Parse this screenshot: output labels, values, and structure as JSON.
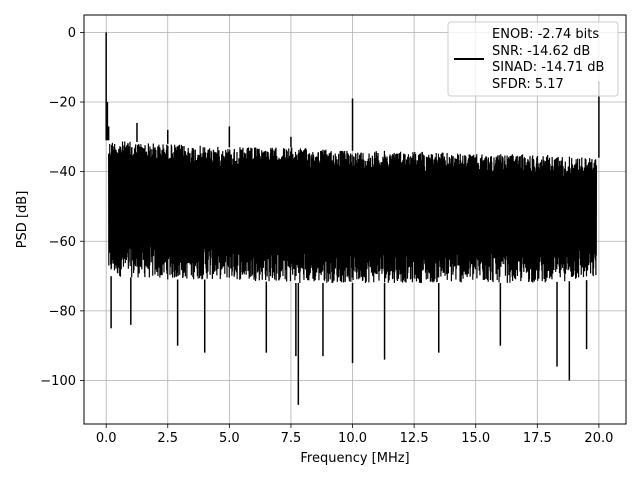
{
  "chart_data": {
    "type": "line",
    "xlabel": "Frequency [MHz]",
    "ylabel": "PSD [dB]",
    "xlim": [
      -0.9,
      21.1
    ],
    "ylim": [
      -112.5,
      5
    ],
    "xticks": [
      0.0,
      2.5,
      5.0,
      7.5,
      10.0,
      12.5,
      15.0,
      17.5,
      20.0
    ],
    "xtick_labels": [
      "0.0",
      "2.5",
      "5.0",
      "7.5",
      "10.0",
      "12.5",
      "15.0",
      "17.5",
      "20.0"
    ],
    "yticks": [
      0,
      -20,
      -40,
      -60,
      -80,
      -100
    ],
    "ytick_labels": [
      "0",
      "−20",
      "−40",
      "−60",
      "−80",
      "−100"
    ],
    "grid": true,
    "legend_position": "top-right",
    "legend": [
      "ENOB: -2.74 bits",
      "SNR: -14.62 dB",
      "SINAD: -14.71 dB",
      "SFDR: 5.17"
    ],
    "series_color": "#000000",
    "noise_floor": {
      "x": [
        0.1,
        2.5,
        5.0,
        7.5,
        10.0,
        12.5,
        15.0,
        17.5,
        19.9
      ],
      "upper": [
        -31,
        -32,
        -33,
        -33,
        -34,
        -34,
        -35,
        -35,
        -36
      ],
      "lower": [
        -70,
        -71,
        -71,
        -72,
        -72,
        -72,
        -72,
        -72,
        -71
      ]
    },
    "peaks": {
      "x": [
        0.0,
        0.05,
        0.1,
        1.25,
        2.5,
        5.0,
        7.5,
        10.0,
        20.0
      ],
      "y": [
        0,
        -20,
        -27,
        -26,
        -28,
        -27,
        -30,
        -19,
        -14
      ]
    },
    "dips": {
      "x": [
        0.2,
        1.0,
        2.9,
        4.0,
        6.5,
        7.7,
        7.8,
        8.8,
        10.0,
        11.3,
        13.5,
        16.0,
        18.3,
        18.8,
        19.5
      ],
      "y": [
        -85,
        -84,
        -90,
        -92,
        -92,
        -93,
        -107,
        -93,
        -95,
        -94,
        -92,
        -90,
        -96,
        -100,
        -91
      ]
    }
  }
}
